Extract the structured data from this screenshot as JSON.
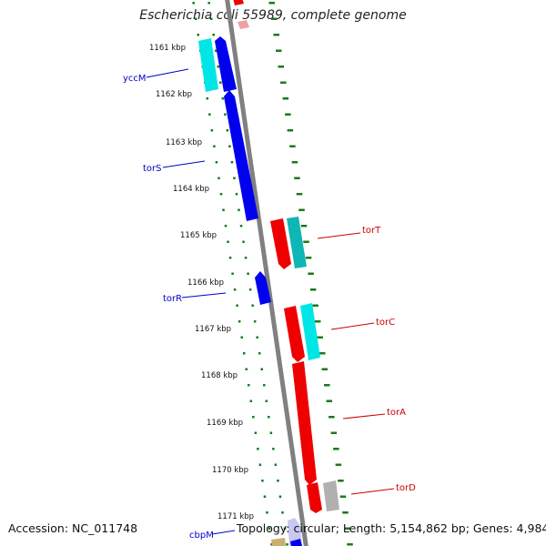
{
  "title": "Escherichia coli 55989, complete genome",
  "footer": {
    "accession": "Accession: NC_011748",
    "summary": "Topology: circular; Length: 5,154,862 bp; Genes: 4,984"
  },
  "colors": {
    "backbone": "#808080",
    "tick_dots": "#1a7a1a",
    "forward_label": "#0000cc",
    "reverse_label": "#cc0000",
    "blue_gene": "#0000ee",
    "cyan_gene": "#00e5e5",
    "red_gene": "#ee0000",
    "teal_gene": "#10b5b5",
    "grey_gene": "#b0b0b0"
  },
  "ruler_ticks": [
    {
      "label": "1161 kbp"
    },
    {
      "label": "1162 kbp"
    },
    {
      "label": "1163 kbp"
    },
    {
      "label": "1164 kbp"
    },
    {
      "label": "1165 kbp"
    },
    {
      "label": "1166 kbp"
    },
    {
      "label": "1167 kbp"
    },
    {
      "label": "1168 kbp"
    },
    {
      "label": "1169 kbp"
    },
    {
      "label": "1170 kbp"
    },
    {
      "label": "1171 kbp"
    }
  ],
  "gene_labels": [
    {
      "name": "yccM",
      "strand": "forward"
    },
    {
      "name": "torS",
      "strand": "forward"
    },
    {
      "name": "torR",
      "strand": "forward"
    },
    {
      "name": "cbpM",
      "strand": "forward"
    },
    {
      "name": "torT",
      "strand": "reverse"
    },
    {
      "name": "torC",
      "strand": "reverse"
    },
    {
      "name": "torA",
      "strand": "reverse"
    },
    {
      "name": "torD",
      "strand": "reverse"
    }
  ]
}
